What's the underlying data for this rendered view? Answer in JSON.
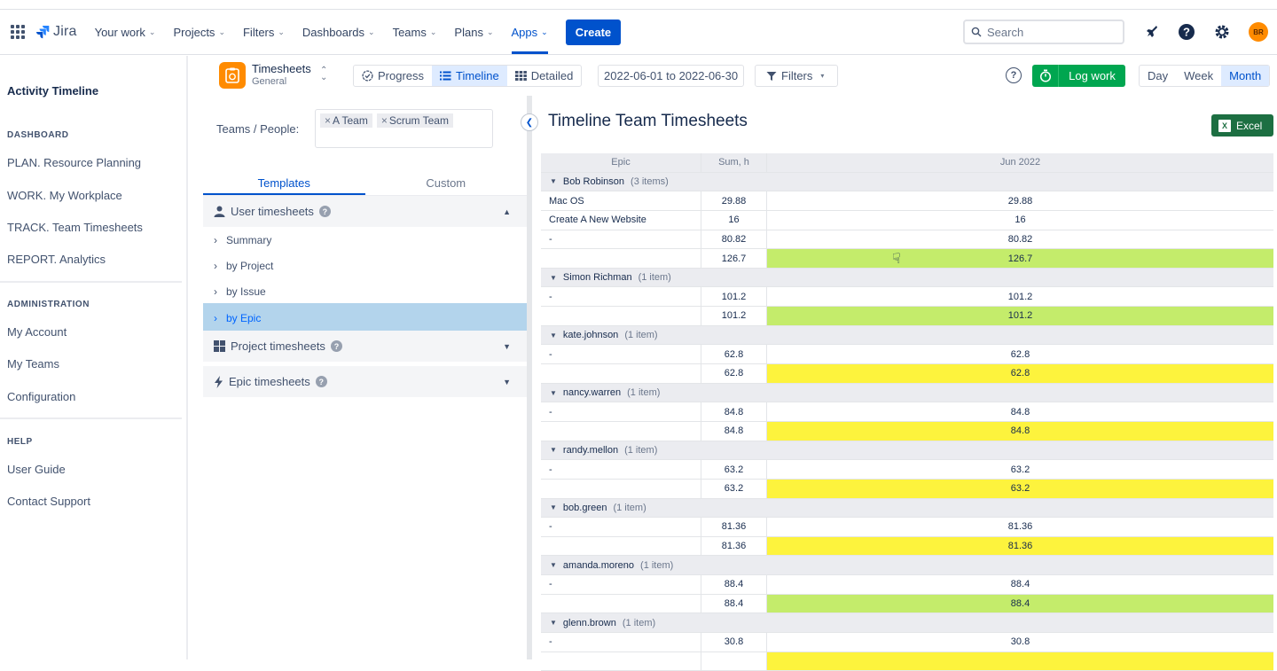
{
  "topnav": {
    "product": "Jira",
    "items": [
      {
        "label": "Your work"
      },
      {
        "label": "Projects"
      },
      {
        "label": "Filters"
      },
      {
        "label": "Dashboards"
      },
      {
        "label": "Teams"
      },
      {
        "label": "Plans"
      },
      {
        "label": "Apps"
      }
    ],
    "create_label": "Create",
    "search_placeholder": "Search",
    "avatar_initials": "BR"
  },
  "sidebar": {
    "title": "Activity Timeline",
    "dashboard_heading": "DASHBOARD",
    "dashboard_items": [
      "PLAN. Resource Planning",
      "WORK. My Workplace",
      "TRACK. Team Timesheets",
      "REPORT. Analytics"
    ],
    "admin_heading": "ADMINISTRATION",
    "admin_items": [
      "My Account",
      "My Teams",
      "Configuration"
    ],
    "help_heading": "HELP",
    "help_items": [
      "User Guide",
      "Contact Support"
    ]
  },
  "toolbar": {
    "app_title": "Timesheets",
    "app_subtitle": "General",
    "views": [
      "Progress",
      "Timeline",
      "Detailed"
    ],
    "date_range": "2022-06-01 to 2022-06-30",
    "filters_label": "Filters",
    "help_label": "?",
    "logwork_label": "Log work",
    "periods": [
      "Day",
      "Week",
      "Month"
    ]
  },
  "left_panel": {
    "teams_label": "Teams / People:",
    "chips": [
      "A Team",
      "Scrum Team"
    ],
    "tabs": [
      "Templates",
      "Custom"
    ],
    "sections": {
      "user": "User timesheets",
      "project": "Project timesheets",
      "epic": "Epic timesheets"
    },
    "user_subitems": [
      "Summary",
      "by Project",
      "by Issue",
      "by Epic"
    ]
  },
  "main": {
    "title": "Timeline Team Timesheets",
    "excel_label": "Excel"
  },
  "grid": {
    "headers": {
      "epic": "Epic",
      "sum": "Sum, h",
      "month": "Jun 2022"
    },
    "groups": [
      {
        "name": "Bob Robinson",
        "count": "(3 items)",
        "rows": [
          {
            "epic": "Mac OS",
            "sum": "29.88",
            "month": "29.88"
          },
          {
            "epic": "Create A New Website",
            "sum": "16",
            "month": "16"
          },
          {
            "epic": "-",
            "sum": "80.82",
            "month": "80.82"
          }
        ],
        "total": "126.7",
        "total_color": "green"
      },
      {
        "name": "Simon Richman",
        "count": "(1 item)",
        "rows": [
          {
            "epic": "-",
            "sum": "101.2",
            "month": "101.2"
          }
        ],
        "total": "101.2",
        "total_color": "green"
      },
      {
        "name": "kate.johnson",
        "count": "(1 item)",
        "rows": [
          {
            "epic": "-",
            "sum": "62.8",
            "month": "62.8"
          }
        ],
        "total": "62.8",
        "total_color": "yellow"
      },
      {
        "name": "nancy.warren",
        "count": "(1 item)",
        "rows": [
          {
            "epic": "-",
            "sum": "84.8",
            "month": "84.8"
          }
        ],
        "total": "84.8",
        "total_color": "yellow"
      },
      {
        "name": "randy.mellon",
        "count": "(1 item)",
        "rows": [
          {
            "epic": "-",
            "sum": "63.2",
            "month": "63.2"
          }
        ],
        "total": "63.2",
        "total_color": "yellow"
      },
      {
        "name": "bob.green",
        "count": "(1 item)",
        "rows": [
          {
            "epic": "-",
            "sum": "81.36",
            "month": "81.36"
          }
        ],
        "total": "81.36",
        "total_color": "yellow"
      },
      {
        "name": "amanda.moreno",
        "count": "(1 item)",
        "rows": [
          {
            "epic": "-",
            "sum": "88.4",
            "month": "88.4"
          }
        ],
        "total": "88.4",
        "total_color": "green"
      },
      {
        "name": "glenn.brown",
        "count": "(1 item)",
        "rows": [
          {
            "epic": "-",
            "sum": "30.8",
            "month": "30.8"
          }
        ],
        "total": "",
        "total_color": "yellow"
      }
    ]
  },
  "colors": {
    "accent": "#0052cc",
    "log_work": "#00a650",
    "excel": "#1d6f42",
    "total_green": "#c4ec6b",
    "total_yellow": "#fdf33d",
    "selected_template": "#b3d4ec"
  }
}
